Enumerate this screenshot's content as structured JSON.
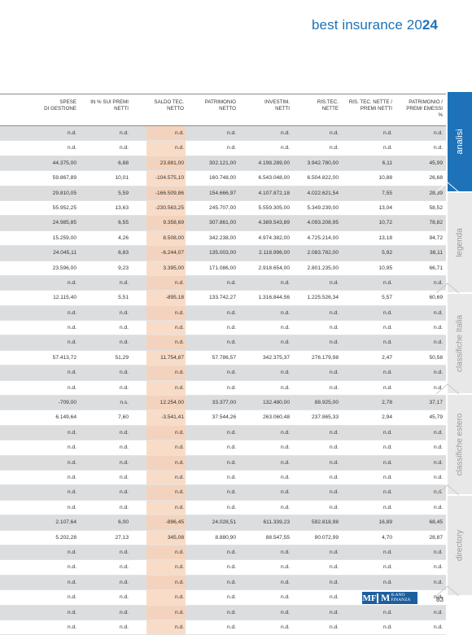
{
  "header": {
    "title": "best insurance",
    "year_light": "20",
    "year_bold": "24"
  },
  "columns": [
    "SPESE\nDI GESTIONE",
    "IN % SUI PREMI\nNETTI",
    "SALDO TEC.\nNETTO",
    "PATRIMONIO\nNETTO",
    "INVESTIM.\nNETTI",
    "RIS.TEC.\nNETTE",
    "RIS. TEC. NETTE /\nPREMI NETTI",
    "PATRIMONIO /\nPREMI EMESSI\n%"
  ],
  "rows": [
    [
      "n.d.",
      "n.d.",
      "n.d.",
      "n.d.",
      "n.d.",
      "n.d.",
      "n.d.",
      "n.d."
    ],
    [
      "n.d.",
      "n.d.",
      "n.d.",
      "n.d.",
      "n.d.",
      "n.d.",
      "n.d.",
      "n.d."
    ],
    [
      "44.375,00",
      "6,88",
      "23.881,00",
      "302.121,00",
      "4.198.289,00",
      "3.942.780,00",
      "6,11",
      "45,99"
    ],
    [
      "59.867,89",
      "10,01",
      "-104.575,10",
      "160.748,00",
      "6.543.048,00",
      "6.504.822,00",
      "10,88",
      "26,68"
    ],
    [
      "29.810,05",
      "5,59",
      "-166.509,86",
      "154.666,97",
      "4.107.872,18",
      "4.022.621,54",
      "7,55",
      "28,39"
    ],
    [
      "55.952,25",
      "13,63",
      "-230.563,25",
      "245.707,00",
      "5.559.305,00",
      "5.349.239,00",
      "13,04",
      "58,52"
    ],
    [
      "24.985,85",
      "6,55",
      "9.358,69",
      "307.861,00",
      "4.389.543,89",
      "4.093.208,95",
      "10,72",
      "78,82"
    ],
    [
      "15.259,00",
      "4,26",
      "8.508,00",
      "342.238,00",
      "4.974.382,00",
      "4.725.214,00",
      "13,18",
      "94,72"
    ],
    [
      "24.045,11",
      "6,83",
      "-6.244,07",
      "135.003,00",
      "2.118.996,00",
      "2.083.782,00",
      "5,92",
      "38,11"
    ],
    [
      "23.596,00",
      "9,23",
      "3.395,00",
      "171.086,00",
      "2.918.654,00",
      "2.801.235,00",
      "10,95",
      "66,71"
    ],
    [
      "n.d.",
      "n.d.",
      "n.d.",
      "n.d.",
      "n.d.",
      "n.d.",
      "n.d.",
      "n.d."
    ],
    [
      "12.115,40",
      "5,51",
      "-895,18",
      "133.742,27",
      "1.316.844,56",
      "1.225.526,34",
      "5,57",
      "60,69"
    ],
    [
      "n.d.",
      "n.d.",
      "n.d.",
      "n.d.",
      "n.d.",
      "n.d.",
      "n.d.",
      "n.d."
    ],
    [
      "n.d.",
      "n.d.",
      "n.d.",
      "n.d.",
      "n.d.",
      "n.d.",
      "n.d.",
      "n.d."
    ],
    [
      "n.d.",
      "n.d.",
      "n.d.",
      "n.d.",
      "n.d.",
      "n.d.",
      "n.d.",
      "n.d."
    ],
    [
      "57.413,72",
      "51,29",
      "11.754,87",
      "57.786,57",
      "342.375,37",
      "276.179,98",
      "2,47",
      "50,58"
    ],
    [
      "n.d.",
      "n.d.",
      "n.d.",
      "n.d.",
      "n.d.",
      "n.d.",
      "n.d.",
      "n.d."
    ],
    [
      "n.d.",
      "n.d.",
      "n.d.",
      "n.d.",
      "n.d.",
      "n.d.",
      "n.d.",
      "n.d."
    ],
    [
      "-709,00",
      "n.s.",
      "12.254,00",
      "33.377,00",
      "132.480,00",
      "88.925,00",
      "2,78",
      "37,17"
    ],
    [
      "6.149,64",
      "7,60",
      "-3.541,41",
      "37.544,26",
      "263.060,48",
      "237.865,33",
      "2,94",
      "45,79"
    ],
    [
      "n.d.",
      "n.d.",
      "n.d.",
      "n.d.",
      "n.d.",
      "n.d.",
      "n.d.",
      "n.d."
    ],
    [
      "n.d.",
      "n.d.",
      "n.d.",
      "n.d.",
      "n.d.",
      "n.d.",
      "n.d.",
      "n.d."
    ],
    [
      "n.d.",
      "n.d.",
      "n.d.",
      "n.d.",
      "n.d.",
      "n.d.",
      "n.d.",
      "n.d."
    ],
    [
      "n.d.",
      "n.d.",
      "n.d.",
      "n.d.",
      "n.d.",
      "n.d.",
      "n.d.",
      "n.d."
    ],
    [
      "n.d.",
      "n.d.",
      "n.d.",
      "n.d.",
      "n.d.",
      "n.d.",
      "n.d.",
      "n.d."
    ],
    [
      "n.d.",
      "n.d.",
      "n.d.",
      "n.d.",
      "n.d.",
      "n.d.",
      "n.d.",
      "n.d."
    ],
    [
      "2.107,64",
      "6,00",
      "-896,45",
      "24.028,51",
      "611.339,23",
      "592.818,98",
      "16,89",
      "68,45"
    ],
    [
      "5.202,28",
      "27,13",
      "345,08",
      "8.880,90",
      "88.547,55",
      "90.072,99",
      "4,70",
      "28,87"
    ],
    [
      "n.d.",
      "n.d.",
      "n.d.",
      "n.d.",
      "n.d.",
      "n.d.",
      "n.d.",
      "n.d."
    ],
    [
      "n.d.",
      "n.d.",
      "n.d.",
      "n.d.",
      "n.d.",
      "n.d.",
      "n.d.",
      "n.d."
    ],
    [
      "n.d.",
      "n.d.",
      "n.d.",
      "n.d.",
      "n.d.",
      "n.d.",
      "n.d.",
      "n.d."
    ],
    [
      "n.d.",
      "n.d.",
      "n.d.",
      "n.d.",
      "n.d.",
      "n.d.",
      "n.d.",
      "n.d."
    ],
    [
      "n.d.",
      "n.d.",
      "n.d.",
      "n.d.",
      "n.d.",
      "n.d.",
      "n.d.",
      "n.d."
    ],
    [
      "n.d.",
      "n.d.",
      "n.d.",
      "n.d.",
      "n.d.",
      "n.d.",
      "n.d.",
      "n.d."
    ]
  ],
  "side_tabs": [
    {
      "label": "analisi",
      "active": true
    },
    {
      "label": "legenda",
      "active": false
    },
    {
      "label": "classifiche Italia",
      "active": false
    },
    {
      "label": "classifiche estero",
      "active": false
    },
    {
      "label": "directory",
      "active": false
    }
  ],
  "footer": {
    "logo_left": "MF",
    "logo_right_big": "M",
    "logo_right_top": "ILANO",
    "logo_right_bottom": "FINANZA",
    "page_number": "83"
  },
  "colors": {
    "accent": "#1d72b8",
    "saldo_highlight": "#f8dcc8",
    "shaded_row": "#dcdddf"
  }
}
